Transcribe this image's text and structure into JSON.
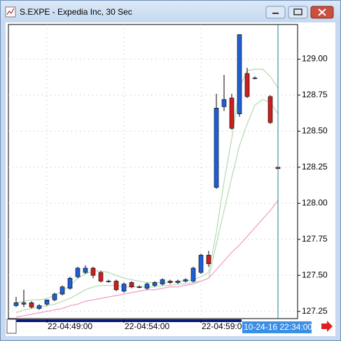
{
  "chart_data": {
    "type": "candlestick",
    "title": "S.EXPE - Expedia Inc, 30 Sec",
    "crosshair_label": "10-24-16 22:34:00",
    "categories": [
      null,
      null,
      null,
      null,
      "22-04:49:00",
      null,
      null,
      null,
      null,
      null,
      null,
      null,
      null,
      null,
      "22-04:54:00",
      null,
      null,
      null,
      null,
      null,
      null,
      null,
      null,
      null,
      "22-04:59:00",
      null,
      null,
      null,
      null,
      null,
      null,
      null,
      null,
      null,
      null
    ],
    "open": [
      127.29,
      127.3,
      127.31,
      127.27,
      127.3,
      127.33,
      127.37,
      127.41,
      127.49,
      127.52,
      127.55,
      127.52,
      127.46,
      127.46,
      127.39,
      127.45,
      127.42,
      127.41,
      127.43,
      127.44,
      127.46,
      127.45,
      127.46,
      127.46,
      127.52,
      127.64,
      128.11,
      128.67,
      128.73,
      128.62,
      128.9,
      128.87,
      null,
      128.74,
      128.25
    ],
    "high": [
      127.35,
      127.4,
      127.32,
      127.3,
      127.33,
      127.38,
      127.43,
      127.49,
      127.56,
      127.57,
      127.56,
      127.53,
      127.47,
      127.47,
      127.45,
      127.46,
      127.43,
      127.45,
      127.46,
      127.48,
      127.47,
      127.47,
      127.48,
      127.56,
      127.65,
      127.67,
      128.76,
      128.89,
      128.76,
      129.17,
      128.94,
      128.88,
      null,
      128.75,
      128.39
    ],
    "low": [
      127.28,
      127.28,
      127.27,
      127.26,
      127.29,
      127.32,
      127.36,
      127.4,
      127.48,
      127.51,
      127.48,
      127.45,
      127.45,
      127.39,
      127.38,
      127.41,
      127.41,
      127.4,
      127.42,
      127.43,
      127.44,
      127.44,
      127.45,
      127.45,
      127.51,
      127.56,
      128.1,
      128.64,
      128.51,
      128.6,
      128.73,
      128.86,
      null,
      128.55,
      128.12
    ],
    "close": [
      127.31,
      127.31,
      127.28,
      127.29,
      127.33,
      127.37,
      127.42,
      127.48,
      127.55,
      127.55,
      127.5,
      127.46,
      127.46,
      127.4,
      127.44,
      127.42,
      127.42,
      127.44,
      127.45,
      127.47,
      127.45,
      127.46,
      127.47,
      127.55,
      127.64,
      127.58,
      128.66,
      128.72,
      128.52,
      129.17,
      128.74,
      128.87,
      null,
      128.56,
      128.24
    ],
    "up_color": "#1f5fd6",
    "down_color": "#cc1f1f",
    "moving_averages": [
      {
        "color": "#b8dcb8",
        "values": [
          127.31,
          127.32,
          127.33,
          127.33,
          127.34,
          127.36,
          127.39,
          127.43,
          127.48,
          127.51,
          127.53,
          127.53,
          127.52,
          127.5,
          127.48,
          127.47,
          127.46,
          127.45,
          127.45,
          127.45,
          127.45,
          127.46,
          127.46,
          127.47,
          127.49,
          127.52,
          127.8,
          128.15,
          128.45,
          128.8,
          128.92,
          128.93,
          128.93,
          128.88,
          128.8
        ]
      },
      {
        "color": "#b8dcb8",
        "values": [
          127.24,
          127.26,
          127.27,
          127.28,
          127.29,
          127.3,
          127.32,
          127.34,
          127.37,
          127.4,
          127.42,
          127.43,
          127.43,
          127.43,
          127.42,
          127.42,
          127.42,
          127.42,
          127.42,
          127.43,
          127.43,
          127.44,
          127.44,
          127.45,
          127.46,
          127.48,
          127.72,
          127.95,
          128.18,
          128.4,
          128.55,
          128.68,
          128.72,
          128.7,
          128.62
        ]
      },
      {
        "color": "#f4a0c8",
        "values": [
          127.21,
          127.22,
          127.23,
          127.24,
          127.25,
          127.26,
          127.27,
          127.29,
          127.3,
          127.32,
          127.33,
          127.34,
          127.35,
          127.36,
          127.37,
          127.38,
          127.39,
          127.4,
          127.4,
          127.41,
          127.42,
          127.42,
          127.43,
          127.44,
          127.46,
          127.48,
          127.54,
          127.6,
          127.66,
          127.71,
          127.77,
          127.83,
          127.89,
          127.95,
          128.02
        ]
      }
    ],
    "ylim": [
      127.2,
      129.24
    ],
    "yticks": [
      127.25,
      {
        "value": 127.5,
        "label": "127.50"
      },
      127.75,
      {
        "value": 128,
        "label": "128.00"
      },
      128.25,
      {
        "value": 128.5,
        "label": "128.50"
      },
      128.75,
      {
        "value": 129,
        "label": "129.00"
      }
    ],
    "grid": true
  }
}
